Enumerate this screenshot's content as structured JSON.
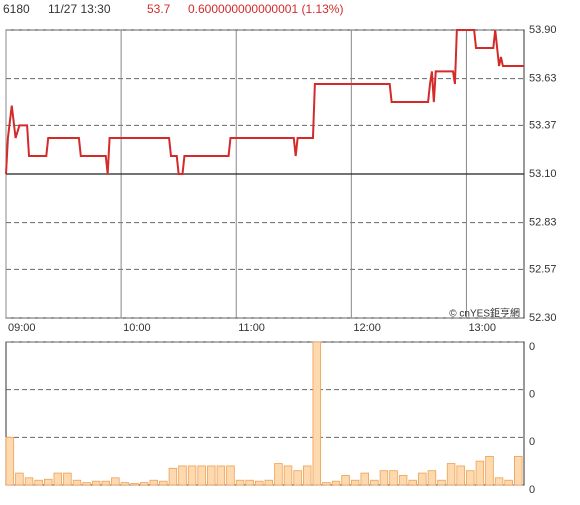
{
  "header": {
    "symbol": "6180",
    "time": "11/27 13:30",
    "price": "53.7",
    "change": "0.600000000000001 (1.13%)"
  },
  "watermark": "© cnYES鉅亨網",
  "chart_data": [
    {
      "type": "line",
      "color": "#d42a2a",
      "grid": true,
      "baseline": 53.1,
      "xlim": [
        "09:00",
        "13:30"
      ],
      "xticks": [
        "09:00",
        "10:00",
        "11:00",
        "12:00",
        "13:00"
      ],
      "ylim": [
        52.3,
        53.9
      ],
      "yticks": [
        {
          "value": 53.9,
          "label": "53.90"
        },
        53.63,
        53.37,
        {
          "value": 53.1,
          "label": "53.10"
        },
        52.83,
        52.57,
        {
          "value": 52.3,
          "label": "52.30"
        }
      ],
      "x": [
        "09:00",
        "09:01",
        "09:03",
        "09:05",
        "09:07",
        "09:11",
        "09:12",
        "09:21",
        "09:22",
        "09:38",
        "09:39",
        "09:52",
        "09:53",
        "09:54",
        "10:25",
        "10:26",
        "10:29",
        "10:30",
        "10:32",
        "10:33",
        "10:56",
        "10:57",
        "11:30",
        "11:31",
        "11:32",
        "11:40",
        "11:41",
        "12:20",
        "12:21",
        "12:40",
        "12:41",
        "12:42",
        "12:43",
        "12:44",
        "12:53",
        "12:54",
        "12:55",
        "13:04",
        "13:05",
        "13:14",
        "13:15",
        "13:17",
        "13:18",
        "13:19",
        "13:30"
      ],
      "values": [
        53.1,
        53.3,
        53.48,
        53.3,
        53.37,
        53.37,
        53.2,
        53.2,
        53.3,
        53.3,
        53.2,
        53.2,
        53.1,
        53.3,
        53.3,
        53.2,
        53.2,
        53.1,
        53.1,
        53.2,
        53.2,
        53.3,
        53.3,
        53.2,
        53.3,
        53.3,
        53.6,
        53.6,
        53.5,
        53.5,
        53.6,
        53.67,
        53.5,
        53.67,
        53.67,
        53.6,
        53.9,
        53.9,
        53.8,
        53.8,
        53.9,
        53.7,
        53.75,
        53.7,
        53.7
      ]
    },
    {
      "type": "bar",
      "color": "#fdd9b0",
      "edge": "#f0a050",
      "grid": true,
      "xlim": [
        "09:00",
        "13:30"
      ],
      "ylim": [
        0,
        300
      ],
      "yticks": [
        {
          "value": 300,
          "label": "0"
        },
        {
          "value": 200,
          "label": "0"
        },
        {
          "value": 100,
          "label": "0"
        },
        {
          "value": 0,
          "label": "0"
        }
      ],
      "x": [
        "09:00",
        "09:05",
        "09:10",
        "09:15",
        "09:20",
        "09:25",
        "09:30",
        "09:35",
        "09:40",
        "09:45",
        "09:50",
        "09:55",
        "10:00",
        "10:05",
        "10:10",
        "10:15",
        "10:20",
        "10:25",
        "10:30",
        "10:35",
        "10:40",
        "10:45",
        "10:50",
        "10:55",
        "11:00",
        "11:05",
        "11:10",
        "11:15",
        "11:20",
        "11:25",
        "11:30",
        "11:35",
        "11:40",
        "11:45",
        "11:50",
        "11:55",
        "12:00",
        "12:05",
        "12:10",
        "12:15",
        "12:20",
        "12:25",
        "12:30",
        "12:35",
        "12:40",
        "12:45",
        "12:50",
        "12:55",
        "13:00",
        "13:05",
        "13:10",
        "13:15",
        "13:20",
        "13:25"
      ],
      "values": [
        100,
        25,
        15,
        10,
        12,
        25,
        25,
        10,
        5,
        8,
        8,
        15,
        5,
        3,
        5,
        10,
        8,
        35,
        40,
        40,
        40,
        40,
        40,
        40,
        10,
        10,
        8,
        10,
        45,
        40,
        30,
        40,
        300,
        5,
        8,
        20,
        10,
        25,
        10,
        30,
        30,
        20,
        10,
        25,
        30,
        10,
        45,
        40,
        30,
        50,
        60,
        15,
        10,
        60
      ]
    }
  ]
}
